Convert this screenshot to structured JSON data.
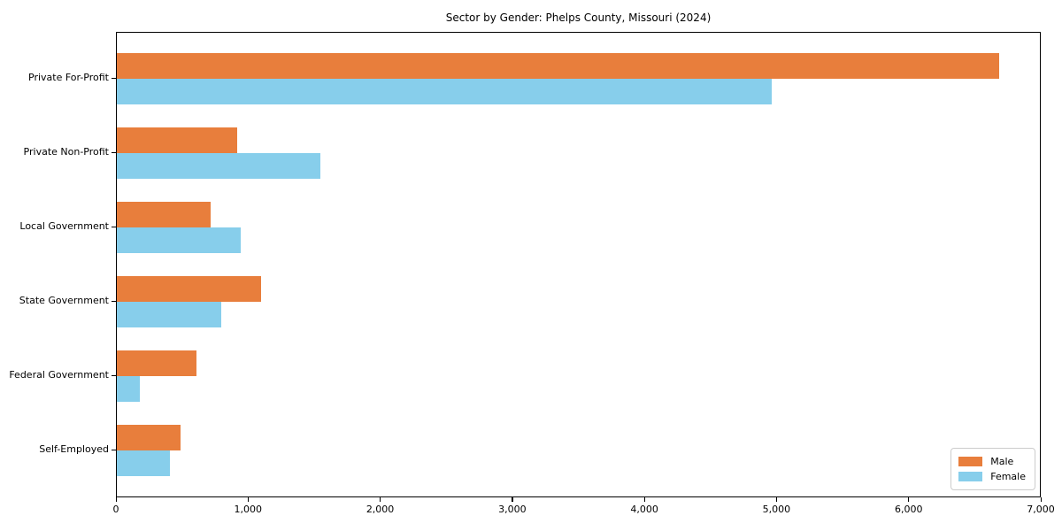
{
  "chart_data": {
    "type": "bar",
    "orientation": "horizontal",
    "title": "Sector by Gender: Phelps County, Missouri (2024)",
    "categories": [
      "Private For-Profit",
      "Private Non-Profit",
      "Local Government",
      "State Government",
      "Federal Government",
      "Self-Employed"
    ],
    "series": [
      {
        "name": "Male",
        "color": "#e87e3c",
        "values": [
          6680,
          910,
          710,
          1090,
          600,
          480
        ]
      },
      {
        "name": "Female",
        "color": "#87ceeb",
        "values": [
          4960,
          1540,
          940,
          790,
          175,
          400
        ]
      }
    ],
    "xlim": [
      0,
      7000
    ],
    "xtick_values": [
      0,
      1000,
      2000,
      3000,
      4000,
      5000,
      6000,
      7000
    ],
    "xtick_labels": [
      "0",
      "1,000",
      "2,000",
      "3,000",
      "4,000",
      "5,000",
      "6,000",
      "7,000"
    ],
    "xlabel": "",
    "ylabel": "",
    "grid": false,
    "legend": {
      "position": "lower right",
      "labels": [
        "Male",
        "Female"
      ]
    }
  }
}
